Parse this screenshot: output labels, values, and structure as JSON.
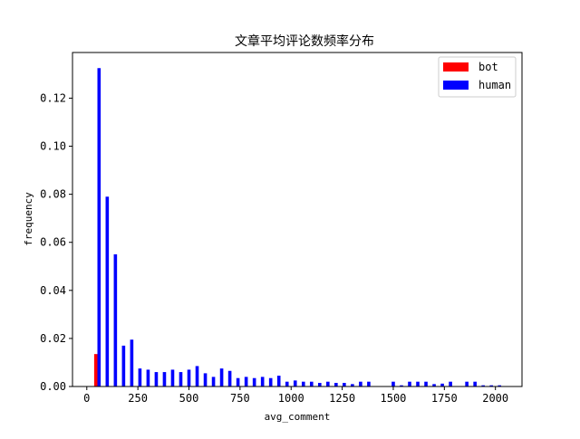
{
  "chart_data": {
    "type": "bar",
    "title": "文章平均评论数频率分布",
    "xlabel": "avg_comment",
    "ylabel": "frequency",
    "xlim": [
      -70,
      2130
    ],
    "ylim": [
      0,
      0.139
    ],
    "x_ticks": [
      {
        "value": 0,
        "label": "0"
      },
      {
        "value": 250,
        "label": "250"
      },
      {
        "value": 500,
        "label": "500"
      },
      {
        "value": 750,
        "label": "750"
      },
      {
        "value": 1000,
        "label": "1000"
      },
      {
        "value": 1250,
        "label": "1250"
      },
      {
        "value": 1500,
        "label": "1500"
      },
      {
        "value": 1750,
        "label": "1750"
      },
      {
        "value": 2000,
        "label": "2000"
      }
    ],
    "y_ticks": [
      {
        "value": 0,
        "label": "0.00"
      },
      {
        "value": 0.02,
        "label": "0.02"
      },
      {
        "value": 0.04,
        "label": "0.04"
      },
      {
        "value": 0.06,
        "label": "0.06"
      },
      {
        "value": 0.08,
        "label": "0.08"
      },
      {
        "value": 0.1,
        "label": "0.10"
      },
      {
        "value": 0.12,
        "label": "0.12"
      }
    ],
    "grid": false,
    "legend_position": "top-right",
    "bar_width": 16,
    "series": [
      {
        "name": "bot",
        "color": "#ff0000",
        "points": [
          [
            44,
            0.0135
          ]
        ]
      },
      {
        "name": "human",
        "color": "#0000ff",
        "points": [
          [
            60,
            0.1325
          ],
          [
            100,
            0.079
          ],
          [
            140,
            0.055
          ],
          [
            180,
            0.017
          ],
          [
            220,
            0.0195
          ],
          [
            260,
            0.0075
          ],
          [
            300,
            0.007
          ],
          [
            340,
            0.006
          ],
          [
            380,
            0.006
          ],
          [
            420,
            0.007
          ],
          [
            460,
            0.006
          ],
          [
            500,
            0.007
          ],
          [
            540,
            0.0085
          ],
          [
            580,
            0.0055
          ],
          [
            620,
            0.004
          ],
          [
            660,
            0.0075
          ],
          [
            700,
            0.0065
          ],
          [
            740,
            0.0035
          ],
          [
            780,
            0.004
          ],
          [
            820,
            0.0035
          ],
          [
            860,
            0.004
          ],
          [
            900,
            0.0035
          ],
          [
            940,
            0.0045
          ],
          [
            980,
            0.002
          ],
          [
            1020,
            0.0025
          ],
          [
            1060,
            0.002
          ],
          [
            1100,
            0.002
          ],
          [
            1140,
            0.0015
          ],
          [
            1180,
            0.002
          ],
          [
            1220,
            0.0015
          ],
          [
            1260,
            0.0015
          ],
          [
            1300,
            0.001
          ],
          [
            1340,
            0.002
          ],
          [
            1380,
            0.002
          ],
          [
            1500,
            0.002
          ],
          [
            1540,
            0.0005
          ],
          [
            1580,
            0.002
          ],
          [
            1620,
            0.002
          ],
          [
            1660,
            0.002
          ],
          [
            1700,
            0.001
          ],
          [
            1740,
            0.0012
          ],
          [
            1780,
            0.002
          ],
          [
            1860,
            0.002
          ],
          [
            1900,
            0.002
          ],
          [
            1940,
            0.0005
          ],
          [
            1980,
            0.0005
          ],
          [
            2020,
            0.0005
          ]
        ]
      }
    ]
  }
}
